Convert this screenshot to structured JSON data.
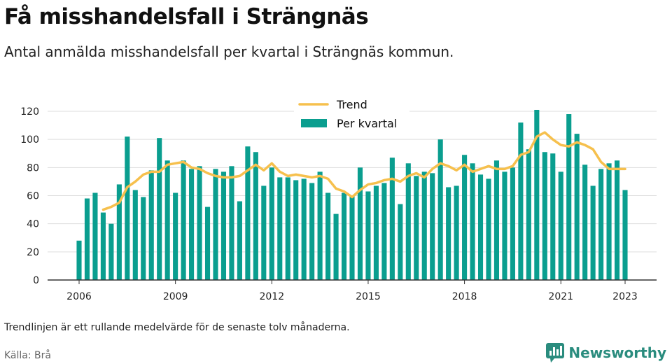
{
  "title": "Få misshandelsfall i Strängnäs",
  "subtitle": "Antal anmälda misshandelsfall per kvartal i Strängnäs kommun.",
  "footnote": "Trendlinjen är ett rullande medelvärde för de senaste tolv månaderna.",
  "source": "Källa: Brå",
  "brand": "Newsworthy",
  "colors": {
    "bars": "#0a9e8f",
    "trend": "#f6c04d",
    "grid": "#dddddd",
    "brand": "#2a8c7e"
  },
  "chart_data": {
    "type": "bar",
    "x_start": 2006.0,
    "x_step": 0.25,
    "ylim": [
      0,
      120
    ],
    "yticks": [
      0,
      20,
      40,
      60,
      80,
      100,
      120
    ],
    "xticks": [
      2006,
      2009,
      2012,
      2015,
      2018,
      2021,
      2023
    ],
    "legend_position": "top",
    "grid": true,
    "series": [
      {
        "name": "Per kvartal",
        "type": "bar",
        "values": [
          28,
          58,
          62,
          48,
          40,
          68,
          102,
          64,
          59,
          78,
          101,
          85,
          62,
          85,
          79,
          81,
          52,
          79,
          77,
          81,
          56,
          95,
          91,
          67,
          80,
          73,
          73,
          71,
          72,
          69,
          77,
          62,
          47,
          62,
          60,
          80,
          63,
          67,
          69,
          87,
          54,
          83,
          74,
          77,
          76,
          100,
          66,
          67,
          89,
          83,
          75,
          72,
          85,
          77,
          80,
          112,
          93,
          121,
          91,
          90,
          77,
          118,
          104,
          82,
          67,
          79,
          83,
          85,
          64
        ]
      },
      {
        "name": "Trend",
        "type": "line",
        "x_start": 2006.75,
        "values": [
          50,
          52,
          55,
          66,
          70,
          75,
          77,
          77,
          82,
          83,
          84,
          80,
          79,
          76,
          74,
          73,
          73,
          74,
          78,
          82,
          78,
          83,
          77,
          74,
          75,
          74,
          73,
          74,
          72,
          65,
          63,
          59,
          64,
          68,
          69,
          71,
          72,
          70,
          74,
          76,
          73,
          79,
          83,
          81,
          78,
          82,
          77,
          79,
          81,
          79,
          79,
          81,
          89,
          91,
          102,
          105,
          100,
          96,
          95,
          98,
          96,
          93,
          84,
          79,
          79,
          79
        ]
      }
    ]
  }
}
